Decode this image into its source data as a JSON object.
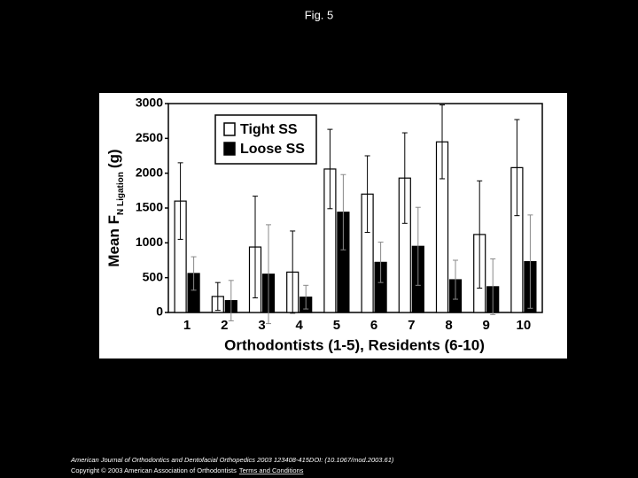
{
  "header": {
    "title": "Fig. 5"
  },
  "chart_data": {
    "type": "bar",
    "ylabel_main": "Mean F",
    "ylabel_sub": "N Ligation",
    "ylabel_unit": "(g)",
    "xlabel": "Orthodontists (1-5), Residents (6-10)",
    "categories": [
      "1",
      "2",
      "3",
      "4",
      "5",
      "6",
      "7",
      "8",
      "9",
      "10"
    ],
    "series": [
      {
        "name": "Tight SS",
        "color": "#ffffff",
        "values": [
          1600,
          230,
          940,
          580,
          2060,
          1700,
          1930,
          2450,
          1120,
          2080
        ],
        "errors": [
          550,
          200,
          730,
          590,
          570,
          550,
          650,
          530,
          770,
          690
        ]
      },
      {
        "name": "Loose SS",
        "color": "#000000",
        "values": [
          560,
          170,
          550,
          220,
          1440,
          720,
          950,
          470,
          370,
          730
        ],
        "errors": [
          240,
          290,
          710,
          170,
          540,
          290,
          560,
          280,
          400,
          670
        ]
      }
    ],
    "ylim": [
      0,
      3000
    ],
    "yticks": [
      0,
      500,
      1000,
      1500,
      2000,
      2500,
      3000
    ],
    "grid": false,
    "legend": "upper left"
  },
  "footer": {
    "citation": "American Journal of Orthodontics and Dentofacial Orthopedics 2003 123408-415DOI: (10.1067/mod.2003.61)",
    "copyright": "Copyright © 2003 American Association of Orthodontists",
    "link": "Terms and Conditions"
  }
}
